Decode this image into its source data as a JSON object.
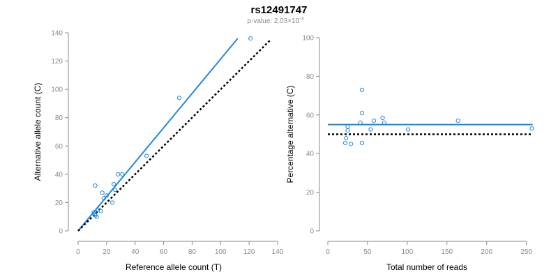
{
  "title": "rs12491747",
  "subtitle": {
    "prefix": "p-value: 2.03×10",
    "exponent": "-3"
  },
  "colors": {
    "fit": "#1e88e5",
    "points": "#1e88e5",
    "reference": "#000000",
    "axis": "#8a8a8a"
  },
  "chart_data": [
    {
      "type": "scatter",
      "xlabel": "Reference allele count (T)",
      "ylabel": "Alternative allele count (C)",
      "xlim": [
        0,
        140
      ],
      "ylim": [
        0,
        140
      ],
      "xticks": [
        0,
        20,
        40,
        60,
        80,
        100,
        120,
        140
      ],
      "yticks": [
        0,
        20,
        40,
        60,
        80,
        100,
        120,
        140
      ],
      "points": [
        {
          "x": 12,
          "y": 32
        },
        {
          "x": 11,
          "y": 13
        },
        {
          "x": 12,
          "y": 11
        },
        {
          "x": 13,
          "y": 10
        },
        {
          "x": 12,
          "y": 12
        },
        {
          "x": 14,
          "y": 15
        },
        {
          "x": 16,
          "y": 14
        },
        {
          "x": 17,
          "y": 27
        },
        {
          "x": 18,
          "y": 23
        },
        {
          "x": 20,
          "y": 25
        },
        {
          "x": 24,
          "y": 20
        },
        {
          "x": 25,
          "y": 33
        },
        {
          "x": 26,
          "y": 29
        },
        {
          "x": 28,
          "y": 40
        },
        {
          "x": 31,
          "y": 40
        },
        {
          "x": 48,
          "y": 53
        },
        {
          "x": 71,
          "y": 94
        },
        {
          "x": 121,
          "y": 136
        }
      ],
      "lines": [
        {
          "style": "fit",
          "x": [
            0,
            112
          ],
          "y": [
            0,
            136
          ]
        },
        {
          "style": "reference",
          "x": [
            0,
            135
          ],
          "y": [
            0,
            135
          ]
        }
      ],
      "grid": false,
      "legend": "none"
    },
    {
      "type": "scatter",
      "xlabel": "Total number of reads",
      "ylabel": "Percentage alternative (C)",
      "xlim": [
        0,
        260
      ],
      "ylim": [
        0,
        100
      ],
      "xticks": [
        0,
        50,
        100,
        150,
        200,
        250
      ],
      "yticks": [
        0,
        20,
        40,
        60,
        80,
        100
      ],
      "points": [
        {
          "x": 22,
          "y": 45.5
        },
        {
          "x": 23,
          "y": 48
        },
        {
          "x": 25,
          "y": 52
        },
        {
          "x": 25,
          "y": 54
        },
        {
          "x": 29,
          "y": 45
        },
        {
          "x": 41,
          "y": 56
        },
        {
          "x": 43,
          "y": 61
        },
        {
          "x": 43,
          "y": 73
        },
        {
          "x": 43,
          "y": 45.5
        },
        {
          "x": 54,
          "y": 52.5
        },
        {
          "x": 58,
          "y": 57
        },
        {
          "x": 69,
          "y": 58.5
        },
        {
          "x": 71,
          "y": 56
        },
        {
          "x": 101,
          "y": 52.5
        },
        {
          "x": 164,
          "y": 57
        },
        {
          "x": 257,
          "y": 53
        }
      ],
      "lines": [
        {
          "style": "fit",
          "x": [
            0,
            258
          ],
          "y": [
            55,
            55
          ]
        },
        {
          "style": "reference",
          "x": [
            0,
            258
          ],
          "y": [
            50,
            50
          ]
        }
      ],
      "grid": false,
      "legend": "none"
    }
  ]
}
